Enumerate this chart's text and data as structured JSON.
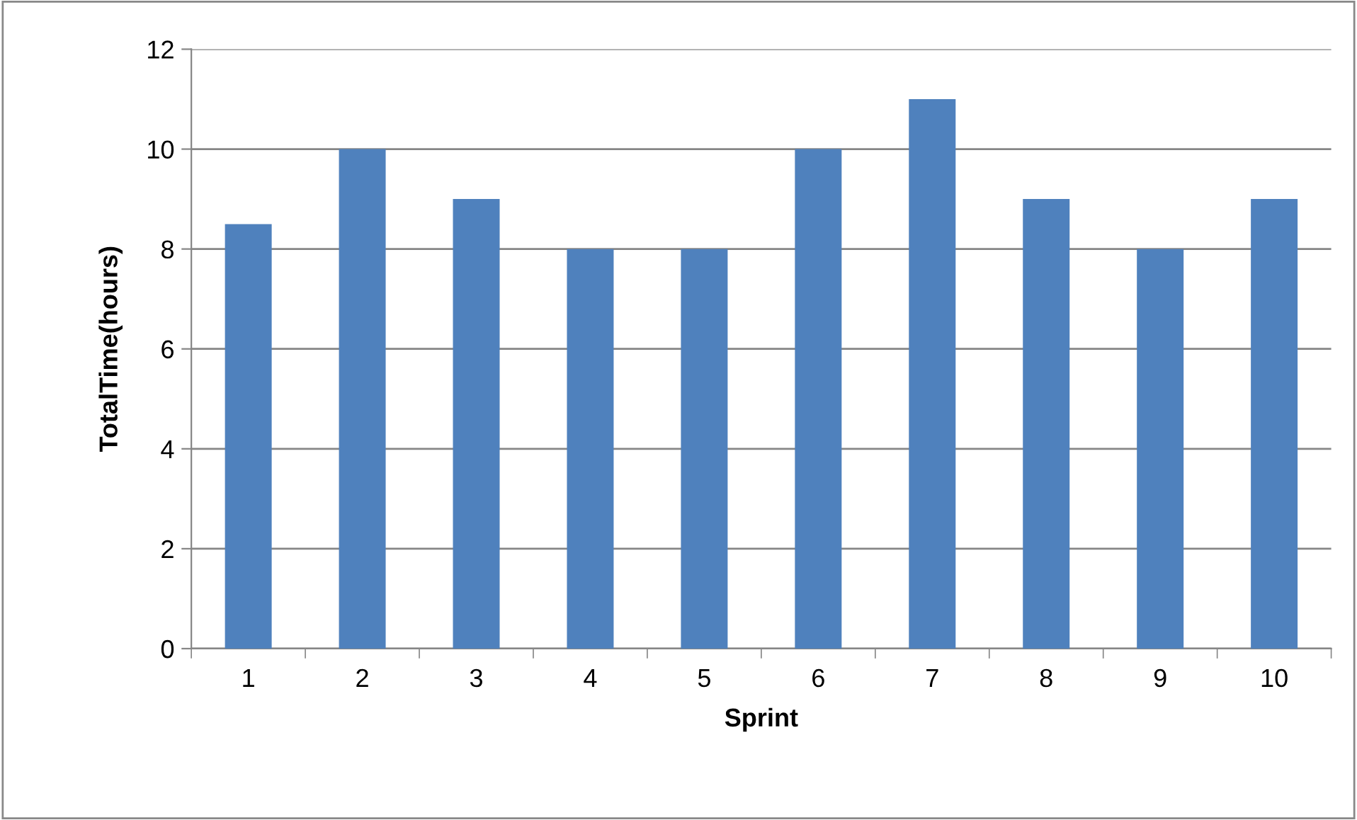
{
  "chart_data": {
    "type": "bar",
    "xlabel": "Sprint",
    "ylabel": "TotalTime(hours)",
    "categories": [
      "1",
      "2",
      "3",
      "4",
      "5",
      "6",
      "7",
      "8",
      "9",
      "10"
    ],
    "values": [
      8.5,
      10,
      9,
      8,
      8,
      10,
      11,
      9,
      8,
      9
    ],
    "color": "#4f81bd",
    "ylim": [
      0,
      12
    ],
    "yticks": [
      0,
      2,
      4,
      6,
      8,
      10,
      12
    ],
    "grid": "y",
    "legend": false
  }
}
